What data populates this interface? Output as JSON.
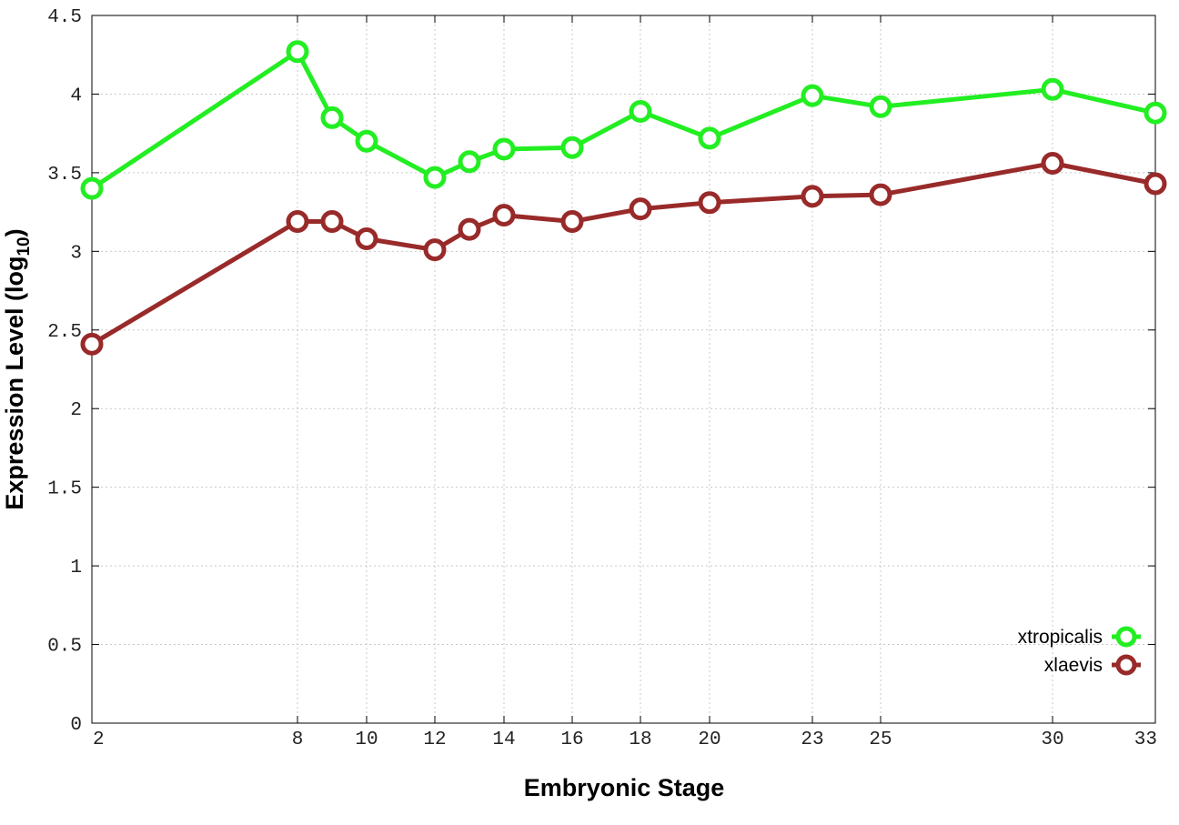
{
  "chart_data": {
    "type": "line",
    "xlabel": "Embryonic Stage",
    "ylabel_main": "Expression Level (log",
    "ylabel_sub": "10",
    "ylabel_close": ")",
    "x_axis_scale": "categorical, non-uniform spacing",
    "x": [
      "2",
      "8",
      "9",
      "10",
      "12",
      "13",
      "14",
      "16",
      "18",
      "20",
      "23",
      "25",
      "30",
      "33"
    ],
    "x_tick_labels": [
      "2",
      "8",
      "10",
      "12",
      "14",
      "16",
      "18",
      "20",
      "23",
      "25",
      "30",
      "33"
    ],
    "y_ticks": [
      "0",
      "0.5",
      "1",
      "1.5",
      "2",
      "2.5",
      "3",
      "3.5",
      "4",
      "4.5"
    ],
    "ylim": [
      0,
      4.5
    ],
    "grid": true,
    "legend_position": "bottom-right",
    "series": [
      {
        "name": "xtropicalis",
        "color": "#22ee22",
        "values": [
          3.4,
          4.27,
          3.85,
          3.7,
          3.47,
          3.57,
          3.65,
          3.66,
          3.89,
          3.72,
          3.99,
          3.92,
          4.03,
          3.88
        ]
      },
      {
        "name": "xlaevis",
        "color": "#992a2a",
        "values": [
          2.41,
          3.19,
          3.19,
          3.08,
          3.01,
          3.14,
          3.23,
          3.19,
          3.27,
          3.31,
          3.35,
          3.36,
          3.56,
          3.43
        ]
      }
    ]
  }
}
